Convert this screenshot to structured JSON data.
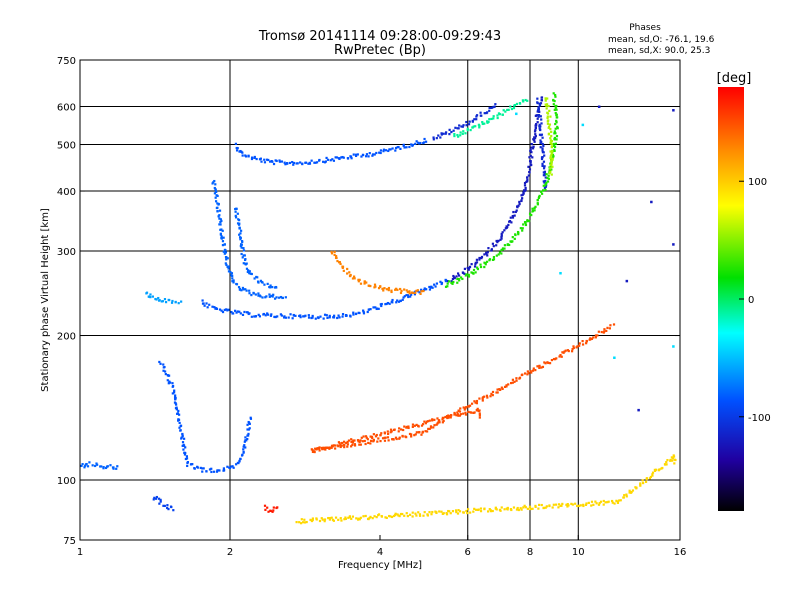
{
  "chart_data": {
    "type": "scatter",
    "title": "Tromsø 20141114 09:28:00-09:29:43",
    "subtitle": "RwPretec (Bp)",
    "xlabel": "Frequency [MHz]",
    "ylabel": "Stationary phase Virtual Height [km]",
    "xscale": "log",
    "yscale": "log",
    "xlim": [
      1,
      16
    ],
    "ylim": [
      75,
      750
    ],
    "x_ticks": [
      1,
      2,
      4,
      6,
      8,
      10,
      16
    ],
    "y_ticks": [
      75,
      100,
      200,
      300,
      400,
      500,
      600,
      750
    ],
    "x_grid": [
      2,
      6,
      8,
      10
    ],
    "y_grid": [
      100,
      200,
      300,
      400,
      500,
      600
    ],
    "grid": true,
    "stats": {
      "heading": "Phases",
      "line1": "mean, sd,O: -76.1, 19.6",
      "line2": "mean, sd,X:  90.0, 25.3"
    },
    "colorbar": {
      "label": "[deg]",
      "range": [
        -180,
        180
      ],
      "ticks": [
        100,
        0,
        -100
      ],
      "colors": [
        "#ff0000",
        "#ff8c00",
        "#ffff00",
        "#00e000",
        "#00ffff",
        "#0050ff",
        "#2000a0",
        "#000000"
      ]
    },
    "series": [
      {
        "phase": -85,
        "points": [
          [
            2.05,
            500
          ],
          [
            2.1,
            480
          ],
          [
            2.2,
            470
          ],
          [
            2.4,
            460
          ],
          [
            2.6,
            458
          ],
          [
            2.8,
            458
          ],
          [
            3.0,
            462
          ],
          [
            3.2,
            466
          ],
          [
            3.4,
            470
          ],
          [
            3.6,
            473
          ],
          [
            3.8,
            477
          ],
          [
            4.0,
            482
          ],
          [
            4.2,
            488
          ],
          [
            4.4,
            494
          ],
          [
            4.6,
            500
          ],
          [
            4.8,
            506
          ],
          [
            5.0,
            512
          ]
        ]
      },
      {
        "phase": -110,
        "points": [
          [
            5.1,
            515
          ],
          [
            5.3,
            522
          ],
          [
            5.5,
            530
          ],
          [
            5.7,
            540
          ],
          [
            5.9,
            550
          ],
          [
            6.1,
            560
          ],
          [
            6.3,
            572
          ],
          [
            6.5,
            585
          ],
          [
            6.7,
            597
          ],
          [
            6.9,
            605
          ]
        ]
      },
      {
        "phase": -10,
        "points": [
          [
            5.6,
            520
          ],
          [
            5.9,
            530
          ],
          [
            6.2,
            542
          ],
          [
            6.5,
            555
          ],
          [
            6.8,
            568
          ],
          [
            7.1,
            585
          ],
          [
            7.4,
            600
          ],
          [
            7.7,
            615
          ],
          [
            7.9,
            625
          ]
        ]
      },
      {
        "phase": -85,
        "points": [
          [
            1.75,
            235
          ],
          [
            1.85,
            228
          ],
          [
            2.0,
            224
          ],
          [
            2.2,
            221
          ],
          [
            2.5,
            220
          ],
          [
            2.8,
            219
          ],
          [
            3.2,
            219
          ],
          [
            3.6,
            222
          ],
          [
            4.0,
            230
          ],
          [
            4.4,
            238
          ],
          [
            4.8,
            247
          ],
          [
            5.2,
            255
          ],
          [
            5.5,
            262
          ]
        ]
      },
      {
        "phase": -80,
        "points": [
          [
            1.85,
            420
          ],
          [
            1.88,
            390
          ],
          [
            1.9,
            360
          ],
          [
            1.92,
            330
          ],
          [
            1.95,
            300
          ],
          [
            1.98,
            280
          ],
          [
            2.02,
            265
          ],
          [
            2.06,
            255
          ],
          [
            2.1,
            250
          ],
          [
            2.2,
            245
          ],
          [
            2.35,
            242
          ],
          [
            2.6,
            240
          ]
        ]
      },
      {
        "phase": -80,
        "points": [
          [
            2.05,
            370
          ],
          [
            2.08,
            345
          ],
          [
            2.1,
            320
          ],
          [
            2.12,
            300
          ],
          [
            2.14,
            285
          ],
          [
            2.2,
            270
          ],
          [
            2.3,
            258
          ],
          [
            2.5,
            250
          ]
        ]
      },
      {
        "phase": 130,
        "points": [
          [
            3.2,
            300
          ],
          [
            3.3,
            285
          ],
          [
            3.5,
            265
          ],
          [
            3.7,
            258
          ],
          [
            3.9,
            253
          ],
          [
            4.1,
            250
          ],
          [
            4.3,
            248
          ],
          [
            4.6,
            247
          ],
          [
            4.9,
            246
          ]
        ]
      },
      {
        "phase": -120,
        "points": [
          [
            5.5,
            260
          ],
          [
            5.8,
            268
          ],
          [
            6.1,
            278
          ],
          [
            6.4,
            290
          ],
          [
            6.7,
            305
          ],
          [
            7.0,
            322
          ],
          [
            7.3,
            345
          ],
          [
            7.6,
            375
          ],
          [
            7.8,
            405
          ],
          [
            7.95,
            440
          ],
          [
            8.05,
            480
          ],
          [
            8.15,
            520
          ],
          [
            8.25,
            560
          ],
          [
            8.35,
            600
          ],
          [
            8.45,
            630
          ]
        ]
      },
      {
        "phase": -110,
        "points": [
          [
            8.3,
            620
          ],
          [
            8.35,
            580
          ],
          [
            8.4,
            540
          ],
          [
            8.45,
            500
          ],
          [
            8.5,
            460
          ],
          [
            8.55,
            430
          ],
          [
            8.6,
            400
          ]
        ]
      },
      {
        "phase": 25,
        "points": [
          [
            5.4,
            255
          ],
          [
            5.8,
            262
          ],
          [
            6.2,
            272
          ],
          [
            6.6,
            285
          ],
          [
            7.0,
            300
          ],
          [
            7.4,
            318
          ],
          [
            7.8,
            340
          ],
          [
            8.2,
            370
          ],
          [
            8.5,
            400
          ],
          [
            8.75,
            440
          ],
          [
            8.9,
            480
          ],
          [
            9.0,
            520
          ],
          [
            9.05,
            560
          ],
          [
            9.0,
            600
          ],
          [
            8.9,
            640
          ]
        ]
      },
      {
        "phase": 60,
        "points": [
          [
            8.6,
            630
          ],
          [
            8.7,
            590
          ],
          [
            8.75,
            550
          ],
          [
            8.8,
            510
          ],
          [
            8.85,
            470
          ],
          [
            8.8,
            430
          ]
        ]
      },
      {
        "phase": -85,
        "points": [
          [
            1.45,
            175
          ],
          [
            1.5,
            165
          ],
          [
            1.55,
            150
          ],
          [
            1.58,
            135
          ],
          [
            1.6,
            125
          ],
          [
            1.62,
            115
          ],
          [
            1.65,
            108
          ],
          [
            1.75,
            105
          ],
          [
            1.9,
            105
          ],
          [
            2.0,
            106
          ],
          [
            2.1,
            110
          ],
          [
            2.15,
            120
          ],
          [
            2.2,
            135
          ]
        ]
      },
      {
        "phase": -80,
        "points": [
          [
            1.0,
            107
          ],
          [
            1.05,
            108
          ],
          [
            1.1,
            107
          ],
          [
            1.2,
            106
          ]
        ]
      },
      {
        "phase": -95,
        "points": [
          [
            1.4,
            92
          ],
          [
            1.45,
            90
          ],
          [
            1.5,
            88
          ],
          [
            1.55,
            87
          ]
        ]
      },
      {
        "phase": -60,
        "points": [
          [
            1.35,
            245
          ],
          [
            1.4,
            240
          ],
          [
            1.45,
            238
          ],
          [
            1.6,
            235
          ]
        ]
      },
      {
        "phase": 170,
        "points": [
          [
            2.35,
            88
          ],
          [
            2.4,
            86
          ],
          [
            2.45,
            87
          ],
          [
            2.5,
            89
          ]
        ]
      },
      {
        "phase": -120,
        "points": [
          [
            11.0,
            600
          ],
          [
            14.0,
            380
          ],
          [
            15.5,
            590
          ],
          [
            15.5,
            310
          ],
          [
            12.5,
            260
          ],
          [
            13.2,
            140
          ]
        ]
      },
      {
        "phase": -40,
        "points": [
          [
            10.2,
            550
          ],
          [
            11.8,
            180
          ],
          [
            15.5,
            190
          ],
          [
            7.5,
            580
          ],
          [
            9.2,
            270
          ]
        ]
      },
      {
        "phase": 150,
        "points": [
          [
            6.3,
            135
          ],
          [
            6.3,
            140
          ],
          [
            2.9,
            115
          ],
          [
            4.8,
            125
          ],
          [
            11.8,
            210
          ]
        ]
      },
      {
        "phase": 95,
        "points": [
          [
            15.5,
            108
          ],
          [
            15.6,
            112
          ],
          [
            12.0,
            90
          ],
          [
            2.7,
            82
          ]
        ]
      }
    ]
  }
}
